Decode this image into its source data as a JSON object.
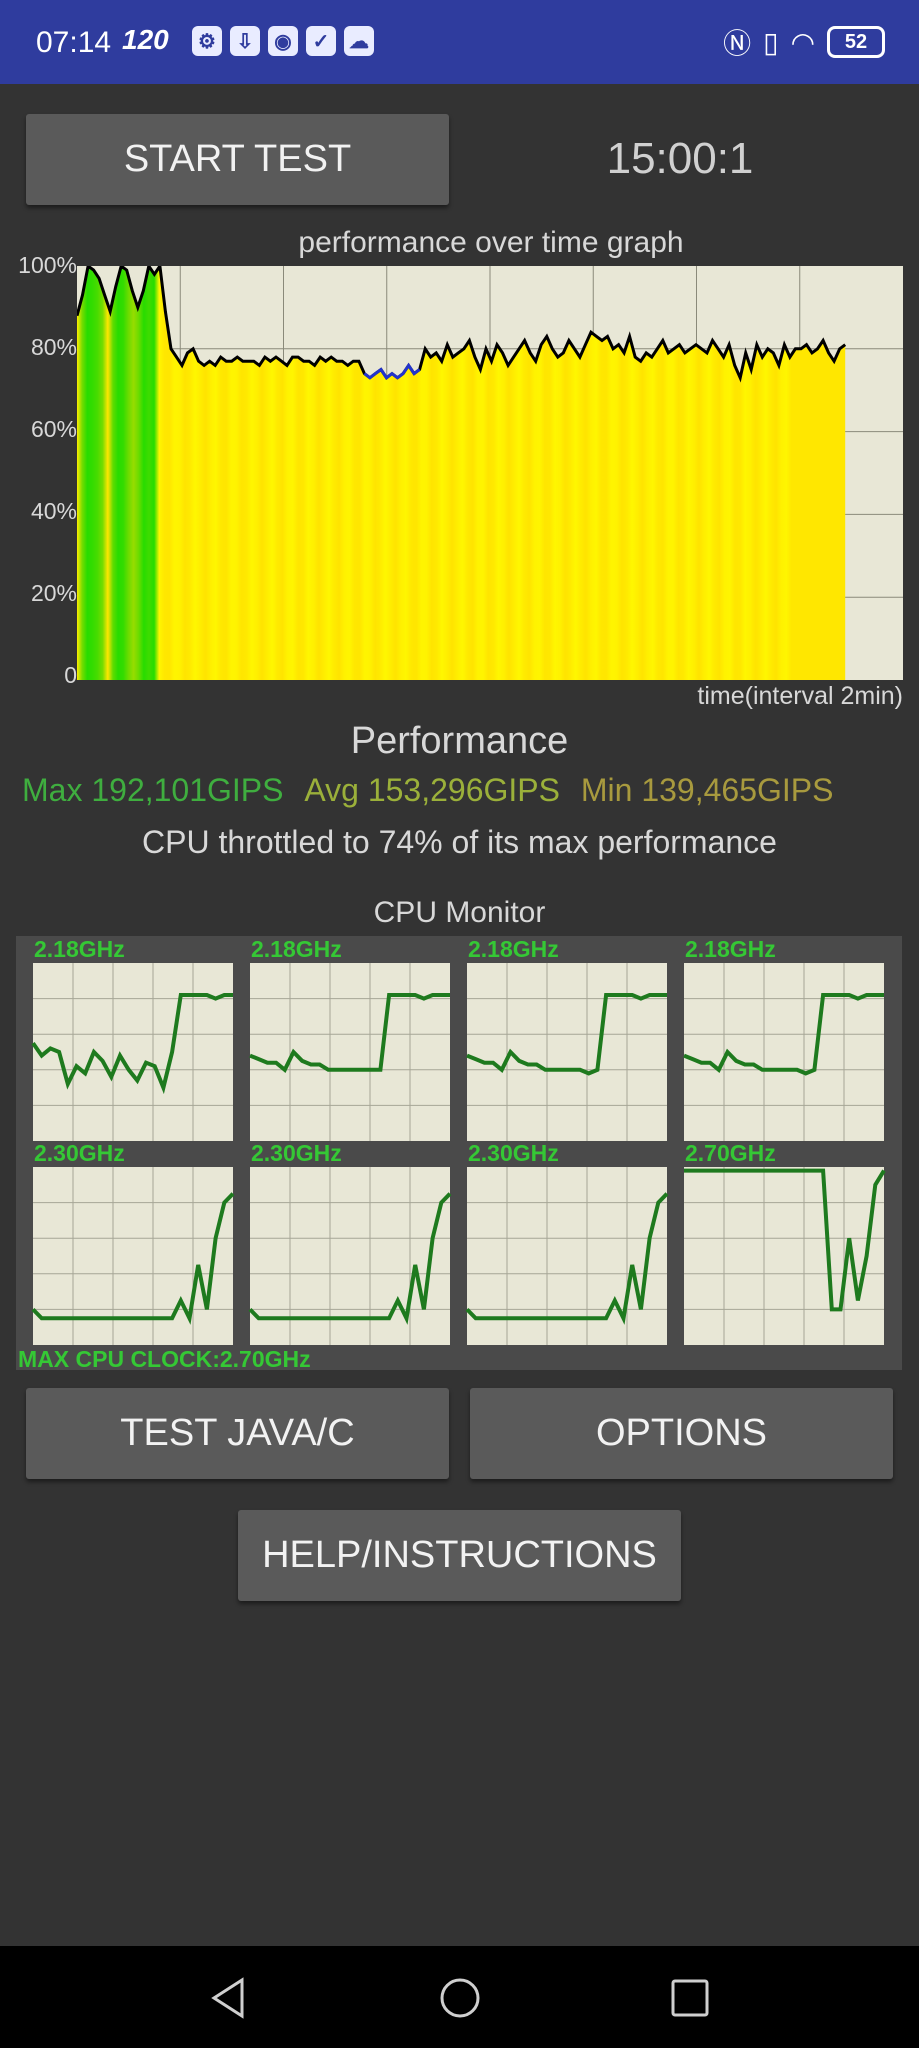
{
  "status_bar": {
    "time": "07:14",
    "refresh_rate": "120",
    "battery": "52",
    "icons": [
      "settings-icon",
      "download-icon",
      "location-icon",
      "check-icon",
      "cloud-icon",
      "nfc-icon",
      "vibrate-icon",
      "wifi-icon",
      "battery-icon"
    ]
  },
  "controls": {
    "start_test": "START TEST",
    "timer": "15:00:1",
    "test_java_c": "TEST JAVA/C",
    "options": "OPTIONS",
    "help": "HELP/INSTRUCTIONS"
  },
  "chart_data": {
    "type": "area",
    "title": "performance over time graph",
    "xlabel": "time(interval 2min)",
    "ylabel": "",
    "ylim": [
      0,
      100
    ],
    "y_ticks": [
      "100%",
      "80%",
      "60%",
      "40%",
      "20%",
      "0"
    ],
    "grid": true,
    "x_divisions": 8,
    "x_extent": 0.93,
    "values": [
      88,
      93,
      100,
      99,
      97,
      93,
      89,
      95,
      100,
      99,
      94,
      90,
      94,
      100,
      98,
      100,
      89,
      80,
      78,
      76,
      79,
      80,
      77,
      76,
      77,
      76,
      78,
      77,
      77,
      78,
      77,
      77,
      77,
      76,
      78,
      77,
      78,
      77,
      76,
      78,
      78,
      77,
      77,
      76,
      78,
      77,
      78,
      77,
      77,
      76,
      77,
      77,
      74,
      73,
      74,
      75,
      73,
      74,
      73,
      74,
      76,
      74,
      75,
      80,
      78,
      79,
      77,
      81,
      78,
      79,
      80,
      82,
      78,
      75,
      80,
      77,
      81,
      79,
      76,
      78,
      80,
      82,
      79,
      77,
      81,
      83,
      80,
      78,
      79,
      82,
      80,
      78,
      81,
      84,
      83,
      82,
      83,
      80,
      81,
      79,
      83,
      78,
      77,
      79,
      78,
      80,
      82,
      79,
      80,
      81,
      79,
      80,
      81,
      80,
      79,
      82,
      80,
      78,
      81,
      76,
      73,
      79,
      75,
      81,
      78,
      80,
      79,
      76,
      81,
      78,
      80,
      80,
      81,
      79,
      80,
      82,
      79,
      77,
      80,
      81
    ]
  },
  "performance": {
    "title": "Performance",
    "max": "Max 192,101GIPS",
    "avg": "Avg 153,296GIPS",
    "min": "Min 139,465GIPS",
    "throttle": "CPU throttled to 74% of its max performance"
  },
  "cpu_monitor": {
    "title": "CPU Monitor",
    "max_clock": "MAX CPU CLOCK:2.70GHz",
    "cores": [
      {
        "freq": "2.18GHz",
        "values": [
          55,
          48,
          52,
          50,
          32,
          42,
          38,
          50,
          45,
          36,
          48,
          40,
          34,
          44,
          42,
          30,
          50,
          82,
          82,
          82,
          82,
          80,
          82,
          82
        ]
      },
      {
        "freq": "2.18GHz",
        "values": [
          48,
          46,
          44,
          44,
          40,
          50,
          45,
          43,
          43,
          40,
          40,
          40,
          40,
          40,
          40,
          40,
          82,
          82,
          82,
          82,
          80,
          82,
          82,
          82
        ]
      },
      {
        "freq": "2.18GHz",
        "values": [
          48,
          46,
          44,
          44,
          40,
          50,
          45,
          43,
          43,
          40,
          40,
          40,
          40,
          40,
          38,
          40,
          82,
          82,
          82,
          82,
          80,
          82,
          82,
          82
        ]
      },
      {
        "freq": "2.18GHz",
        "values": [
          48,
          46,
          44,
          44,
          40,
          50,
          45,
          43,
          43,
          40,
          40,
          40,
          40,
          40,
          38,
          40,
          82,
          82,
          82,
          82,
          80,
          82,
          82,
          82
        ]
      },
      {
        "freq": "2.30GHz",
        "values": [
          20,
          15,
          15,
          15,
          15,
          15,
          15,
          15,
          15,
          15,
          15,
          15,
          15,
          15,
          15,
          15,
          15,
          25,
          15,
          45,
          20,
          60,
          80,
          85
        ]
      },
      {
        "freq": "2.30GHz",
        "values": [
          20,
          15,
          15,
          15,
          15,
          15,
          15,
          15,
          15,
          15,
          15,
          15,
          15,
          15,
          15,
          15,
          15,
          25,
          15,
          45,
          20,
          60,
          80,
          85
        ]
      },
      {
        "freq": "2.30GHz",
        "values": [
          20,
          15,
          15,
          15,
          15,
          15,
          15,
          15,
          15,
          15,
          15,
          15,
          15,
          15,
          15,
          15,
          15,
          25,
          15,
          45,
          20,
          60,
          80,
          85
        ]
      },
      {
        "freq": "2.70GHz",
        "values": [
          98,
          98,
          98,
          98,
          98,
          98,
          98,
          98,
          98,
          98,
          98,
          98,
          98,
          98,
          98,
          98,
          98,
          20,
          20,
          60,
          25,
          50,
          90,
          98
        ]
      }
    ]
  }
}
